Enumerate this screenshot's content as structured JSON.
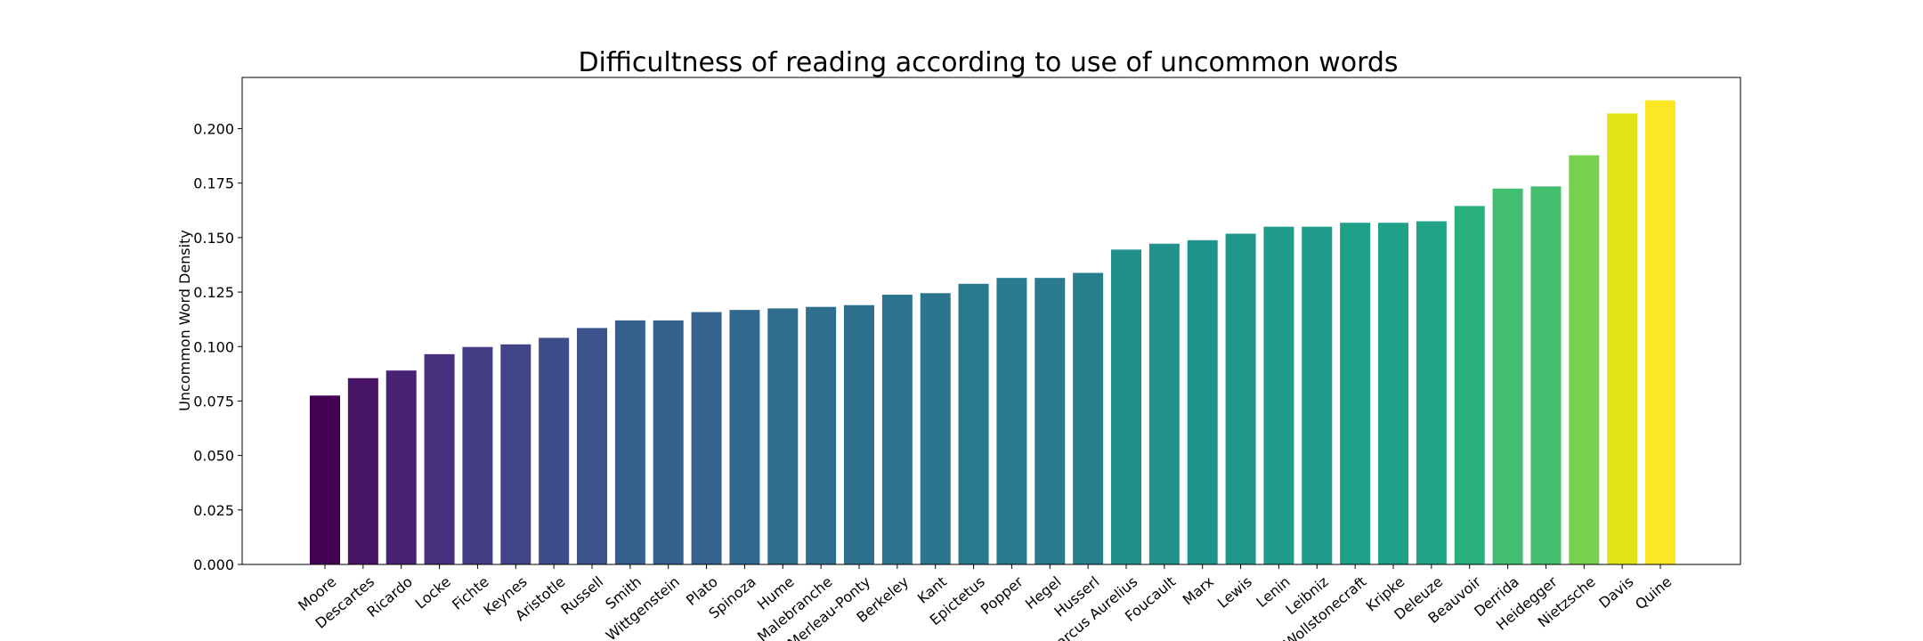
{
  "chart_data": {
    "type": "bar",
    "title": "Difficultness of reading according to use of uncommon words",
    "xlabel": "",
    "ylabel": "Uncommon Word Density",
    "ylim": [
      0,
      0.2235
    ],
    "yticks": [
      "0.000",
      "0.025",
      "0.050",
      "0.075",
      "0.100",
      "0.125",
      "0.150",
      "0.175",
      "0.200"
    ],
    "grid": false,
    "colormap": "viridis",
    "categories": [
      "Moore",
      "Descartes",
      "Ricardo",
      "Locke",
      "Fichte",
      "Keynes",
      "Aristotle",
      "Russell",
      "Smith",
      "Wittgenstein",
      "Plato",
      "Spinoza",
      "Hume",
      "Malebranche",
      "Merleau-Ponty",
      "Berkeley",
      "Kant",
      "Epictetus",
      "Popper",
      "Hegel",
      "Husserl",
      "Marcus Aurelius",
      "Foucault",
      "Marx",
      "Lewis",
      "Lenin",
      "Leibniz",
      "Wollstonecraft",
      "Kripke",
      "Deleuze",
      "Beauvoir",
      "Derrida",
      "Heidegger",
      "Nietzsche",
      "Davis",
      "Quine"
    ],
    "values": [
      0.0775,
      0.0855,
      0.089,
      0.0965,
      0.0998,
      0.101,
      0.104,
      0.1085,
      0.112,
      0.112,
      0.1158,
      0.1168,
      0.1175,
      0.1182,
      0.119,
      0.1238,
      0.1245,
      0.1288,
      0.1315,
      0.1315,
      0.1338,
      0.1445,
      0.1472,
      0.1488,
      0.1518,
      0.155,
      0.155,
      0.1568,
      0.1568,
      0.1575,
      0.1645,
      0.1725,
      0.1735,
      0.1878,
      0.207,
      0.213
    ],
    "colors": [
      "#440154",
      "#471365",
      "#482374",
      "#472f7e",
      "#433e85",
      "#414487",
      "#3e4c8a",
      "#3b528b",
      "#355f8d",
      "#355f8d",
      "#33638d",
      "#31688e",
      "#2f6c8e",
      "#2e6e8e",
      "#2d708e",
      "#2c738e",
      "#2b758e",
      "#2a788e",
      "#297a8e",
      "#297a8e",
      "#277f8e",
      "#21908d",
      "#21918c",
      "#1f948c",
      "#1f988b",
      "#1e9b8a",
      "#1e9b8a",
      "#1fa088",
      "#1fa088",
      "#20a386",
      "#2ab07f",
      "#42be71",
      "#44bf70",
      "#7ad151",
      "#e2e418",
      "#fde725"
    ]
  }
}
